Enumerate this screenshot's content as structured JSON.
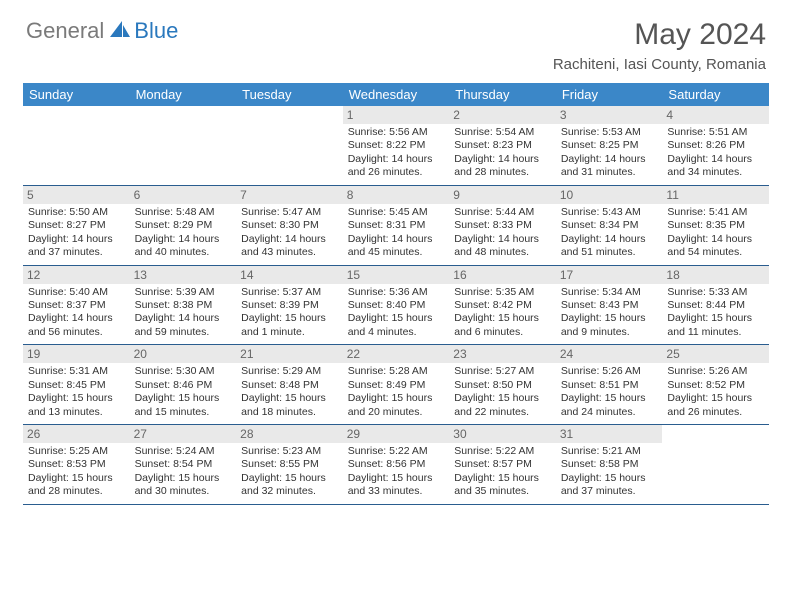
{
  "header": {
    "logo_general": "General",
    "logo_blue": "Blue",
    "month_title": "May 2024",
    "location": "Rachiteni, Iasi County, Romania"
  },
  "colors": {
    "header_bg": "#3b87c8",
    "row_border": "#2a5d8f",
    "daynum_bg": "#e9e9e9",
    "logo_general": "#7a7a7a",
    "logo_blue": "#2a78bd"
  },
  "weekdays": [
    "Sunday",
    "Monday",
    "Tuesday",
    "Wednesday",
    "Thursday",
    "Friday",
    "Saturday"
  ],
  "weeks": [
    [
      {
        "n": "",
        "sr": "",
        "ss": "",
        "dl1": "",
        "dl2": ""
      },
      {
        "n": "",
        "sr": "",
        "ss": "",
        "dl1": "",
        "dl2": ""
      },
      {
        "n": "",
        "sr": "",
        "ss": "",
        "dl1": "",
        "dl2": ""
      },
      {
        "n": "1",
        "sr": "Sunrise: 5:56 AM",
        "ss": "Sunset: 8:22 PM",
        "dl1": "Daylight: 14 hours",
        "dl2": "and 26 minutes."
      },
      {
        "n": "2",
        "sr": "Sunrise: 5:54 AM",
        "ss": "Sunset: 8:23 PM",
        "dl1": "Daylight: 14 hours",
        "dl2": "and 28 minutes."
      },
      {
        "n": "3",
        "sr": "Sunrise: 5:53 AM",
        "ss": "Sunset: 8:25 PM",
        "dl1": "Daylight: 14 hours",
        "dl2": "and 31 minutes."
      },
      {
        "n": "4",
        "sr": "Sunrise: 5:51 AM",
        "ss": "Sunset: 8:26 PM",
        "dl1": "Daylight: 14 hours",
        "dl2": "and 34 minutes."
      }
    ],
    [
      {
        "n": "5",
        "sr": "Sunrise: 5:50 AM",
        "ss": "Sunset: 8:27 PM",
        "dl1": "Daylight: 14 hours",
        "dl2": "and 37 minutes."
      },
      {
        "n": "6",
        "sr": "Sunrise: 5:48 AM",
        "ss": "Sunset: 8:29 PM",
        "dl1": "Daylight: 14 hours",
        "dl2": "and 40 minutes."
      },
      {
        "n": "7",
        "sr": "Sunrise: 5:47 AM",
        "ss": "Sunset: 8:30 PM",
        "dl1": "Daylight: 14 hours",
        "dl2": "and 43 minutes."
      },
      {
        "n": "8",
        "sr": "Sunrise: 5:45 AM",
        "ss": "Sunset: 8:31 PM",
        "dl1": "Daylight: 14 hours",
        "dl2": "and 45 minutes."
      },
      {
        "n": "9",
        "sr": "Sunrise: 5:44 AM",
        "ss": "Sunset: 8:33 PM",
        "dl1": "Daylight: 14 hours",
        "dl2": "and 48 minutes."
      },
      {
        "n": "10",
        "sr": "Sunrise: 5:43 AM",
        "ss": "Sunset: 8:34 PM",
        "dl1": "Daylight: 14 hours",
        "dl2": "and 51 minutes."
      },
      {
        "n": "11",
        "sr": "Sunrise: 5:41 AM",
        "ss": "Sunset: 8:35 PM",
        "dl1": "Daylight: 14 hours",
        "dl2": "and 54 minutes."
      }
    ],
    [
      {
        "n": "12",
        "sr": "Sunrise: 5:40 AM",
        "ss": "Sunset: 8:37 PM",
        "dl1": "Daylight: 14 hours",
        "dl2": "and 56 minutes."
      },
      {
        "n": "13",
        "sr": "Sunrise: 5:39 AM",
        "ss": "Sunset: 8:38 PM",
        "dl1": "Daylight: 14 hours",
        "dl2": "and 59 minutes."
      },
      {
        "n": "14",
        "sr": "Sunrise: 5:37 AM",
        "ss": "Sunset: 8:39 PM",
        "dl1": "Daylight: 15 hours",
        "dl2": "and 1 minute."
      },
      {
        "n": "15",
        "sr": "Sunrise: 5:36 AM",
        "ss": "Sunset: 8:40 PM",
        "dl1": "Daylight: 15 hours",
        "dl2": "and 4 minutes."
      },
      {
        "n": "16",
        "sr": "Sunrise: 5:35 AM",
        "ss": "Sunset: 8:42 PM",
        "dl1": "Daylight: 15 hours",
        "dl2": "and 6 minutes."
      },
      {
        "n": "17",
        "sr": "Sunrise: 5:34 AM",
        "ss": "Sunset: 8:43 PM",
        "dl1": "Daylight: 15 hours",
        "dl2": "and 9 minutes."
      },
      {
        "n": "18",
        "sr": "Sunrise: 5:33 AM",
        "ss": "Sunset: 8:44 PM",
        "dl1": "Daylight: 15 hours",
        "dl2": "and 11 minutes."
      }
    ],
    [
      {
        "n": "19",
        "sr": "Sunrise: 5:31 AM",
        "ss": "Sunset: 8:45 PM",
        "dl1": "Daylight: 15 hours",
        "dl2": "and 13 minutes."
      },
      {
        "n": "20",
        "sr": "Sunrise: 5:30 AM",
        "ss": "Sunset: 8:46 PM",
        "dl1": "Daylight: 15 hours",
        "dl2": "and 15 minutes."
      },
      {
        "n": "21",
        "sr": "Sunrise: 5:29 AM",
        "ss": "Sunset: 8:48 PM",
        "dl1": "Daylight: 15 hours",
        "dl2": "and 18 minutes."
      },
      {
        "n": "22",
        "sr": "Sunrise: 5:28 AM",
        "ss": "Sunset: 8:49 PM",
        "dl1": "Daylight: 15 hours",
        "dl2": "and 20 minutes."
      },
      {
        "n": "23",
        "sr": "Sunrise: 5:27 AM",
        "ss": "Sunset: 8:50 PM",
        "dl1": "Daylight: 15 hours",
        "dl2": "and 22 minutes."
      },
      {
        "n": "24",
        "sr": "Sunrise: 5:26 AM",
        "ss": "Sunset: 8:51 PM",
        "dl1": "Daylight: 15 hours",
        "dl2": "and 24 minutes."
      },
      {
        "n": "25",
        "sr": "Sunrise: 5:26 AM",
        "ss": "Sunset: 8:52 PM",
        "dl1": "Daylight: 15 hours",
        "dl2": "and 26 minutes."
      }
    ],
    [
      {
        "n": "26",
        "sr": "Sunrise: 5:25 AM",
        "ss": "Sunset: 8:53 PM",
        "dl1": "Daylight: 15 hours",
        "dl2": "and 28 minutes."
      },
      {
        "n": "27",
        "sr": "Sunrise: 5:24 AM",
        "ss": "Sunset: 8:54 PM",
        "dl1": "Daylight: 15 hours",
        "dl2": "and 30 minutes."
      },
      {
        "n": "28",
        "sr": "Sunrise: 5:23 AM",
        "ss": "Sunset: 8:55 PM",
        "dl1": "Daylight: 15 hours",
        "dl2": "and 32 minutes."
      },
      {
        "n": "29",
        "sr": "Sunrise: 5:22 AM",
        "ss": "Sunset: 8:56 PM",
        "dl1": "Daylight: 15 hours",
        "dl2": "and 33 minutes."
      },
      {
        "n": "30",
        "sr": "Sunrise: 5:22 AM",
        "ss": "Sunset: 8:57 PM",
        "dl1": "Daylight: 15 hours",
        "dl2": "and 35 minutes."
      },
      {
        "n": "31",
        "sr": "Sunrise: 5:21 AM",
        "ss": "Sunset: 8:58 PM",
        "dl1": "Daylight: 15 hours",
        "dl2": "and 37 minutes."
      },
      {
        "n": "",
        "sr": "",
        "ss": "",
        "dl1": "",
        "dl2": ""
      }
    ]
  ]
}
